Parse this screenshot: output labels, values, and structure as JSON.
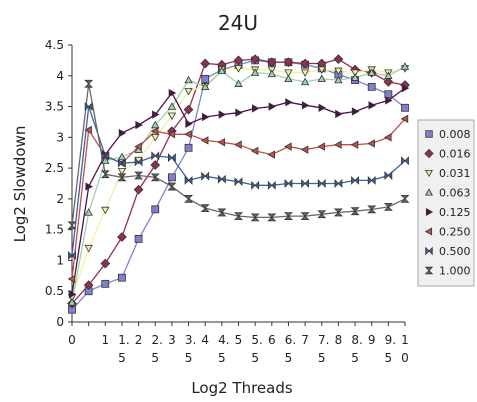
{
  "chart_data": {
    "type": "line",
    "title": "24U",
    "xlabel": "Log2 Threads",
    "ylabel": "Log2 Slowdown",
    "x": [
      0,
      0.5,
      1,
      1.5,
      2,
      2.5,
      3,
      3.5,
      4,
      4.5,
      5,
      5.5,
      6,
      6.5,
      7,
      7.5,
      8,
      8.5,
      9,
      9.5,
      10
    ],
    "x_tick_labels": [
      [
        "0"
      ],
      [
        ""
      ],
      [
        "1"
      ],
      [
        "1.",
        "5"
      ],
      [
        "2"
      ],
      [
        "2.",
        "5"
      ],
      [
        "3"
      ],
      [
        "3.",
        "5"
      ],
      [
        "4"
      ],
      [
        "4.",
        "5"
      ],
      [
        "5"
      ],
      [
        "5.",
        "5"
      ],
      [
        "6"
      ],
      [
        "6.",
        "5"
      ],
      [
        "7"
      ],
      [
        "7.",
        "5"
      ],
      [
        "8"
      ],
      [
        "8.",
        "5"
      ],
      [
        "9"
      ],
      [
        "9.",
        "5"
      ],
      [
        "1",
        "0"
      ]
    ],
    "ylim": [
      0,
      4.5
    ],
    "yticks": [
      "0",
      "0.5",
      "1",
      "1.5",
      "2",
      "2.5",
      "3",
      "3.5",
      "4",
      "4.5"
    ],
    "legend_position": "right",
    "series": [
      {
        "name": "0.008",
        "color": "#8080d0",
        "marker": "square",
        "values": [
          0.2,
          0.5,
          0.62,
          0.72,
          1.35,
          1.83,
          2.35,
          2.83,
          3.95,
          4.1,
          4.18,
          4.25,
          4.22,
          4.22,
          4.18,
          4.12,
          4.02,
          3.93,
          3.82,
          3.7,
          3.48
        ]
      },
      {
        "name": "0.016",
        "color": "#903050",
        "marker": "diamond",
        "values": [
          0.3,
          0.6,
          0.95,
          1.38,
          2.15,
          2.55,
          3.1,
          3.45,
          4.2,
          4.18,
          4.25,
          4.27,
          4.22,
          4.22,
          4.2,
          4.2,
          4.27,
          4.1,
          4.05,
          3.9,
          3.85
        ]
      },
      {
        "name": "0.031",
        "color": "#f0f0a0",
        "marker": "tri-down",
        "values": [
          0.4,
          1.2,
          1.82,
          2.45,
          2.63,
          3.0,
          3.35,
          3.75,
          3.83,
          4.1,
          4.12,
          4.1,
          4.1,
          4.05,
          4.05,
          4.1,
          4.08,
          4.05,
          4.1,
          4.05,
          4.12
        ]
      },
      {
        "name": "0.063",
        "color": "#a0d0b0",
        "marker": "tri-up",
        "values": [
          0.32,
          1.78,
          2.62,
          2.68,
          2.8,
          3.2,
          3.5,
          3.93,
          3.82,
          4.08,
          3.87,
          4.05,
          4.03,
          3.95,
          3.9,
          3.95,
          3.93,
          3.97,
          4.05,
          4.0,
          4.15
        ]
      },
      {
        "name": "0.125",
        "color": "#501050",
        "marker": "tri-right",
        "values": [
          0.45,
          2.2,
          2.72,
          3.07,
          3.2,
          3.37,
          3.72,
          3.22,
          3.33,
          3.37,
          3.4,
          3.47,
          3.5,
          3.57,
          3.52,
          3.48,
          3.38,
          3.42,
          3.52,
          3.6,
          3.8
        ]
      },
      {
        "name": "0.250",
        "color": "#c05048",
        "marker": "tri-left",
        "values": [
          0.7,
          3.12,
          2.7,
          2.58,
          2.85,
          3.1,
          3.05,
          3.05,
          2.95,
          2.92,
          2.88,
          2.78,
          2.72,
          2.85,
          2.8,
          2.85,
          2.88,
          2.88,
          2.9,
          3.0,
          3.3
        ]
      },
      {
        "name": "0.500",
        "color": "#4060a0",
        "marker": "bowtie",
        "values": [
          1.08,
          3.5,
          2.7,
          2.58,
          2.6,
          2.7,
          2.67,
          2.3,
          2.37,
          2.32,
          2.28,
          2.22,
          2.22,
          2.25,
          2.25,
          2.25,
          2.25,
          2.3,
          2.3,
          2.38,
          2.62
        ]
      },
      {
        "name": "1.000",
        "color": "#686868",
        "marker": "hourglass",
        "values": [
          1.57,
          3.87,
          2.4,
          2.35,
          2.38,
          2.35,
          2.2,
          2.0,
          1.85,
          1.78,
          1.72,
          1.7,
          1.7,
          1.72,
          1.72,
          1.75,
          1.78,
          1.8,
          1.83,
          1.87,
          2.0
        ]
      }
    ]
  }
}
